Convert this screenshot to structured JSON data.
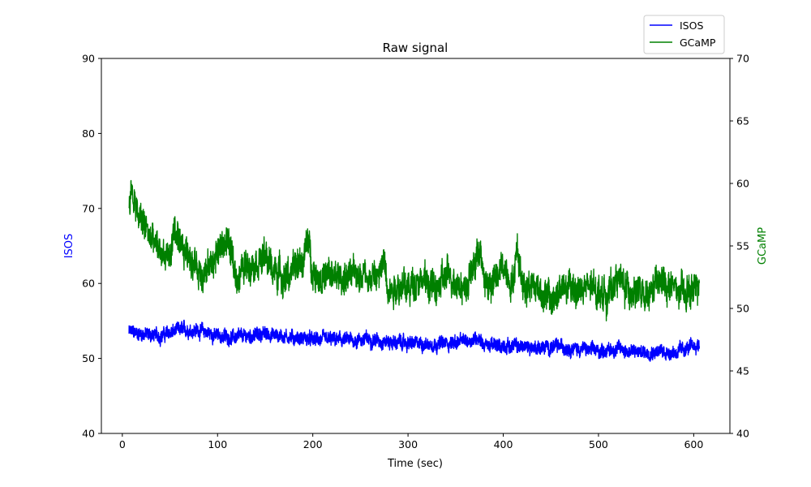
{
  "chart_data": {
    "type": "line",
    "title": "Raw signal",
    "xlabel": "Time (sec)",
    "ylabel_left": "ISOS",
    "ylabel_right": "GCaMP",
    "xlim": [
      -22,
      638
    ],
    "ylim_left": [
      40,
      90
    ],
    "ylim_right": [
      40,
      70
    ],
    "x_ticks": [
      0,
      100,
      200,
      300,
      400,
      500,
      600
    ],
    "y_left_ticks": [
      40,
      50,
      60,
      70,
      80,
      90
    ],
    "y_right_ticks": [
      40,
      45,
      50,
      55,
      60,
      65,
      70
    ],
    "grid": false,
    "legend_position": "upper-right-outside",
    "colors": {
      "isos": "#0000ff",
      "gcamp": "#008000"
    },
    "series": [
      {
        "name": "ISOS",
        "axis": "left",
        "color": "#0000ff",
        "x": [
          7,
          20,
          40,
          60,
          80,
          100,
          120,
          150,
          180,
          200,
          220,
          240,
          260,
          280,
          300,
          320,
          340,
          360,
          375,
          380,
          400,
          420,
          440,
          460,
          480,
          500,
          520,
          540,
          560,
          580,
          600,
          606
        ],
        "y": [
          53.5,
          53.3,
          53.0,
          53.8,
          53.8,
          53.0,
          52.8,
          53.3,
          52.8,
          52.5,
          52.5,
          52.4,
          52.6,
          52.2,
          52.0,
          51.9,
          52.0,
          52.3,
          52.8,
          51.8,
          51.7,
          51.6,
          51.4,
          51.6,
          51.3,
          51.0,
          51.3,
          50.8,
          51.0,
          50.8,
          51.6,
          51.8
        ],
        "noise_amplitude": 0.9
      },
      {
        "name": "GCaMP",
        "axis": "right",
        "color": "#008000",
        "x": [
          7,
          10,
          15,
          20,
          25,
          30,
          40,
          50,
          55,
          60,
          70,
          80,
          90,
          100,
          110,
          120,
          130,
          140,
          150,
          160,
          170,
          180,
          190,
          195,
          200,
          210,
          220,
          230,
          240,
          250,
          260,
          270,
          275,
          280,
          290,
          300,
          310,
          320,
          330,
          340,
          350,
          360,
          370,
          375,
          380,
          390,
          400,
          410,
          415,
          420,
          430,
          440,
          450,
          460,
          470,
          480,
          490,
          500,
          510,
          520,
          530,
          540,
          550,
          560,
          570,
          580,
          590,
          600,
          606
        ],
        "y": [
          58.5,
          59.5,
          57.5,
          57.0,
          56.5,
          55.5,
          54.5,
          54.0,
          56.5,
          54.5,
          54.5,
          53.0,
          53.0,
          54.5,
          55.5,
          52.5,
          53.5,
          54.0,
          54.0,
          53.0,
          52.5,
          53.0,
          54.0,
          55.5,
          53.0,
          52.5,
          52.5,
          52.5,
          52.5,
          53.0,
          52.5,
          52.5,
          54.0,
          51.5,
          52.0,
          51.5,
          52.5,
          52.0,
          51.5,
          52.5,
          52.5,
          51.5,
          53.5,
          55.0,
          52.0,
          52.0,
          53.5,
          52.0,
          55.0,
          52.0,
          52.0,
          51.5,
          50.5,
          51.5,
          51.5,
          51.5,
          51.5,
          51.5,
          51.0,
          52.5,
          51.5,
          51.5,
          50.5,
          52.0,
          52.0,
          51.5,
          51.0,
          51.5,
          52.0
        ],
        "noise_amplitude": 1.3
      }
    ]
  }
}
